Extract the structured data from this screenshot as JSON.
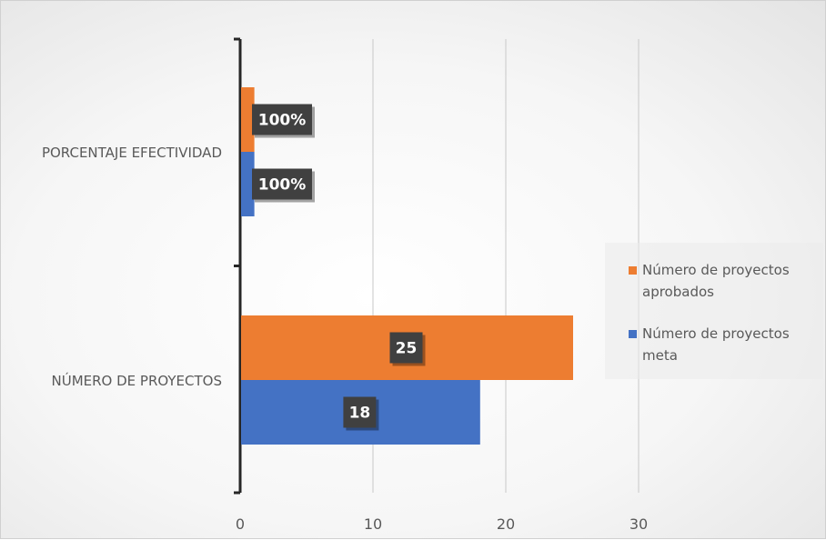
{
  "chart_data": {
    "type": "bar",
    "orientation": "horizontal",
    "categories": [
      "PORCENTAJE EFECTIVIDAD",
      "NÚMERO DE PROYECTOS"
    ],
    "series": [
      {
        "name": "Número de proyectos aprobados",
        "color": "#ED7D31",
        "values": [
          1,
          25
        ],
        "data_labels": [
          "100%",
          "25"
        ]
      },
      {
        "name": "Número de proyectos meta",
        "color": "#4472C4",
        "values": [
          1,
          18
        ],
        "data_labels": [
          "100%",
          "18"
        ]
      }
    ],
    "xlim": [
      0,
      30
    ],
    "x_ticks": [
      "0",
      "10",
      "20",
      "30"
    ],
    "grid": "vertical",
    "legend_position": "right",
    "title": "",
    "xlabel": "",
    "ylabel": ""
  }
}
